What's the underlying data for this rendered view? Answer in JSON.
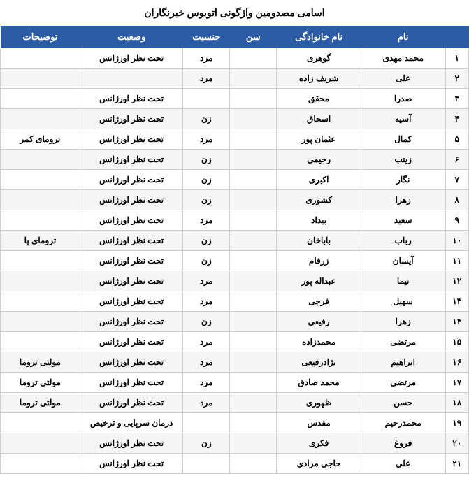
{
  "title": "اسامی مصدومین واژگونی اتوبوس خبرنگاران",
  "columns": [
    "",
    "نام",
    "نام خانوادگی",
    "سن",
    "جنسیت",
    "وضعیت",
    "توضیحات"
  ],
  "rows": [
    {
      "n": "۱",
      "fname": "محمد مهدی",
      "lname": "گوهری",
      "age": "",
      "gender": "مرد",
      "status": "تحت نظر اورژانس",
      "notes": ""
    },
    {
      "n": "۲",
      "fname": "علی",
      "lname": "شریف زاده",
      "age": "",
      "gender": "مرد",
      "status": "",
      "notes": ""
    },
    {
      "n": "۳",
      "fname": "صدرا",
      "lname": "محقق",
      "age": "",
      "gender": "",
      "status": "تحت نظر اورژانس",
      "notes": ""
    },
    {
      "n": "۴",
      "fname": "آسیه",
      "lname": "اسحاق",
      "age": "",
      "gender": "زن",
      "status": "تحت نظر اورژانس",
      "notes": ""
    },
    {
      "n": "۵",
      "fname": "کمال",
      "lname": "عثمان پور",
      "age": "",
      "gender": "مرد",
      "status": "تحت نظر اورژانس",
      "notes": "ترومای کمر"
    },
    {
      "n": "۶",
      "fname": "زینب",
      "lname": "رحیمی",
      "age": "",
      "gender": "زن",
      "status": "تحت نظر اورژانس",
      "notes": ""
    },
    {
      "n": "۷",
      "fname": "نگار",
      "lname": "اکبری",
      "age": "",
      "gender": "زن",
      "status": "تحت نظر اورژانس",
      "notes": ""
    },
    {
      "n": "۸",
      "fname": "زهرا",
      "lname": "کشوری",
      "age": "",
      "gender": "زن",
      "status": "تحت نظر اورژانس",
      "notes": ""
    },
    {
      "n": "۹",
      "fname": "سعید",
      "lname": "بیداد",
      "age": "",
      "gender": "مرد",
      "status": "تحت نظر اورژانس",
      "notes": ""
    },
    {
      "n": "۱۰",
      "fname": "رباب",
      "lname": "باباخان",
      "age": "",
      "gender": "زن",
      "status": "تحت نظر اورژانس",
      "notes": "ترومای پا"
    },
    {
      "n": "۱۱",
      "fname": "آیسان",
      "lname": "زرفام",
      "age": "",
      "gender": "زن",
      "status": "تحت نظر اورژانس",
      "notes": ""
    },
    {
      "n": "۱۲",
      "fname": "نیما",
      "lname": "عبداله پور",
      "age": "",
      "gender": "مرد",
      "status": "تحت نظر اورژانس",
      "notes": ""
    },
    {
      "n": "۱۳",
      "fname": "سهیل",
      "lname": "فرجی",
      "age": "",
      "gender": "مرد",
      "status": "تحت نظر اورژانس",
      "notes": ""
    },
    {
      "n": "۱۴",
      "fname": "زهرا",
      "lname": "رفیعی",
      "age": "",
      "gender": "زن",
      "status": "تحت نظر اورژانس",
      "notes": ""
    },
    {
      "n": "۱۵",
      "fname": "مرتضی",
      "lname": "محمدزاده",
      "age": "",
      "gender": "مرد",
      "status": "تحت نظر اورژانس",
      "notes": ""
    },
    {
      "n": "۱۶",
      "fname": "ابراهیم",
      "lname": "نژادرفیعی",
      "age": "",
      "gender": "مرد",
      "status": "تحت نظر اورژانس",
      "notes": "مولتی تروما"
    },
    {
      "n": "۱۷",
      "fname": "مرتضی",
      "lname": "محمد صادق",
      "age": "",
      "gender": "مرد",
      "status": "تحت نظر اورژانس",
      "notes": "مولتی تروما"
    },
    {
      "n": "۱۸",
      "fname": "حسن",
      "lname": "ظهوری",
      "age": "",
      "gender": "مرد",
      "status": "تحت نظر اورژانس",
      "notes": "مولتی تروما"
    },
    {
      "n": "۱۹",
      "fname": "محمدرحیم",
      "lname": "مقدس",
      "age": "",
      "gender": "",
      "status": "درمان سرپایی و ترخیص",
      "notes": ""
    },
    {
      "n": "۲۰",
      "fname": "فروغ",
      "lname": "فکری",
      "age": "",
      "gender": "زن",
      "status": "تحت نظر اورژانس",
      "notes": ""
    },
    {
      "n": "۲۱",
      "fname": "علی",
      "lname": "حاجی مرادی",
      "age": "",
      "gender": "",
      "status": "تحت نظر اورژانس",
      "notes": ""
    }
  ],
  "style": {
    "header_bg": "#2d5ca6",
    "header_fg": "#ffffff",
    "row_even_bg": "#f5f5f5",
    "row_odd_bg": "#ffffff",
    "border_color": "#d0d0d0",
    "text_color": "#000000",
    "title_fontsize": 14,
    "header_fontsize": 13,
    "cell_fontsize": 12
  }
}
